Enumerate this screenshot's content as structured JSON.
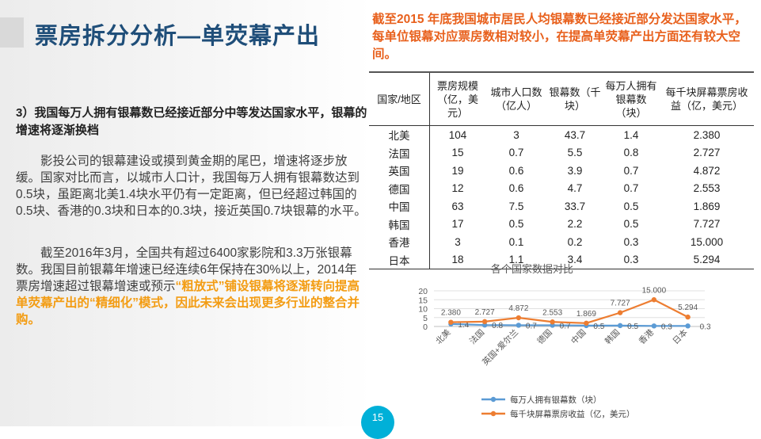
{
  "slide": {
    "title": "票房拆分分析—单荧幕产出",
    "page_number": "15"
  },
  "left": {
    "subtitle": "3）我国每万人拥有银幕数已经接近部分中等发达国家水平，银幕的增速将逐渐换档",
    "para1": "影投公司的银幕建设或摸到黄金期的尾巴，增速将逐步放缓。国家对比而言，以城市人口计，我国每万人拥有银幕数达到0.5块，虽距离北美1.4块水平仍有一定距离，但已经超过韩国的0.5块、香港的0.3块和日本的0.3块，接近英国0.7块银幕的水平。",
    "para2_a": "截至2016年3月，全国共有超过6400家影院和3.3万张银幕数。我国目前银幕年增速已经连续6年保持在30%以上，2014年票房增速超过银幕增速或预示",
    "para2_b": "“粗放式”铺设银幕将逐渐转向提高单荧幕产出的“精细化”模式，因此未来会出现更多行业的整合并购。"
  },
  "right": {
    "title": "截至2015 年底我国城市居民人均银幕数已经接近部分发达国家水平，每单位银幕对应票房数相对较小，在提高单荧幕产出方面还有较大空间。"
  },
  "table": {
    "headers": [
      "国家/地区",
      "票房规模（亿，美元）",
      "城市人口数（亿人）",
      "银幕数（千块）",
      "每万人拥有银幕数（块）",
      "每千块屏幕票房收益（亿，美元）"
    ],
    "rows": [
      [
        "北美",
        "104",
        "3",
        "43.7",
        "1.4",
        "2.380"
      ],
      [
        "法国",
        "15",
        "0.7",
        "5.5",
        "0.8",
        "2.727"
      ],
      [
        "英国",
        "19",
        "0.6",
        "3.9",
        "0.7",
        "4.872"
      ],
      [
        "德国",
        "12",
        "0.6",
        "4.7",
        "0.7",
        "2.553"
      ],
      [
        "中国",
        "63",
        "7.5",
        "33.7",
        "0.5",
        "1.869"
      ],
      [
        "韩国",
        "17",
        "0.5",
        "2.2",
        "0.5",
        "7.727"
      ],
      [
        "香港",
        "3",
        "0.1",
        "0.2",
        "0.3",
        "15.000"
      ],
      [
        "日本",
        "18",
        "1.1",
        "3.4",
        "0.3",
        "5.294"
      ]
    ]
  },
  "chart_data": {
    "type": "line",
    "title": "各个国家数据对比",
    "categories": [
      "北美",
      "法国",
      "英国+爱尔兰",
      "德国",
      "中国",
      "韩国",
      "香港",
      "日本"
    ],
    "series": [
      {
        "name": "每万人拥有银幕数（块）",
        "color": "#5b9bd5",
        "values": [
          1.4,
          0.8,
          0.7,
          0.7,
          0.5,
          0.5,
          0.3,
          0.3
        ],
        "labels": [
          "1.4",
          "0.8",
          "0.7",
          "0.7",
          "0.5",
          "0.5",
          "0.3",
          "0.3"
        ]
      },
      {
        "name": "每千块屏幕票房收益（亿，美元）",
        "color": "#ed7d31",
        "values": [
          2.38,
          2.727,
          4.872,
          2.553,
          1.869,
          7.727,
          15.0,
          5.294
        ],
        "labels": [
          "2.380",
          "2.727",
          "4.872",
          "2.553",
          "1.869",
          "7.727",
          "15.000",
          "5.294"
        ]
      }
    ],
    "y_ticks": [
      "0",
      "5",
      "10",
      "15",
      "20"
    ],
    "ylim": [
      0,
      20
    ],
    "grid": true,
    "legend": "bottom"
  }
}
